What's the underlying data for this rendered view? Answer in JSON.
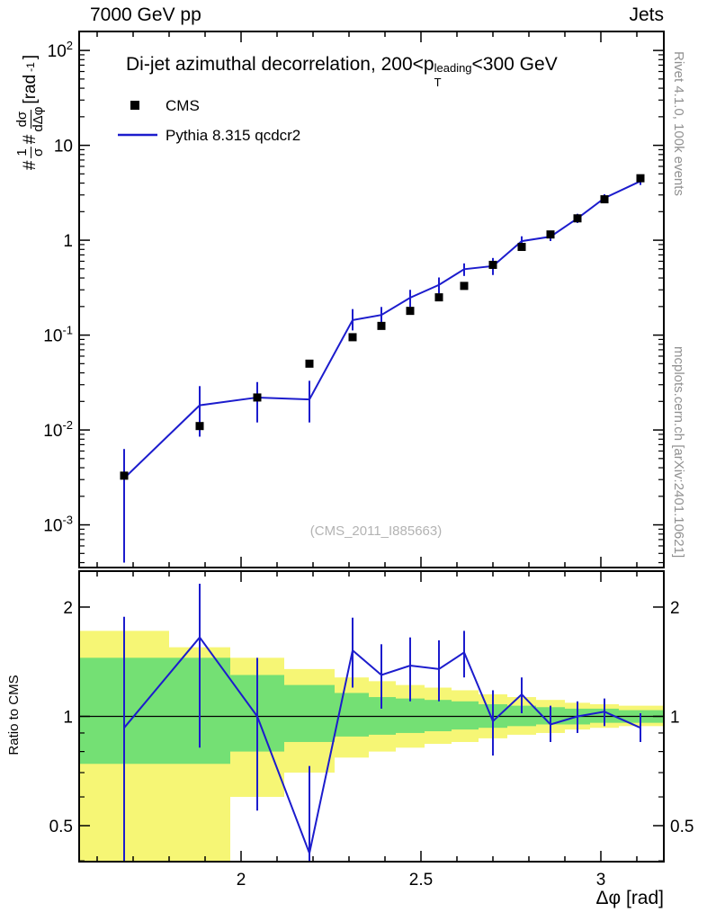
{
  "header": {
    "left": "7000 GeV pp",
    "right": "Jets"
  },
  "title": {
    "pre": "Di-jet azimuthal decorrelation, 200<p",
    "sup": "leading",
    "sub": "T",
    "post": "<300 GeV"
  },
  "legend": [
    {
      "label": "CMS",
      "style": "marker"
    },
    {
      "label": "Pythia 8.315 qcdcr2",
      "style": "line"
    }
  ],
  "ylabel_main": {
    "h1": "#",
    "f1n": "1",
    "f1d": "σ",
    "h2": "#",
    "f2n": "dσ",
    "f2d": "dΔφ",
    "u1": "[rad",
    "usup": "-1",
    "u2": "]"
  },
  "ylabel_ratio": "Ratio to CMS",
  "xlabel": "Δφ [rad]",
  "side": {
    "right_top": "Rivet 4.1.0,  100k events",
    "right_bottom": "mcplots.cern.ch [arXiv:2401.10621]"
  },
  "watermark": "(CMS_2011_I885663)",
  "colors": {
    "line": "#1c1ccd",
    "marker": "#000000",
    "band_outer": "#f6f675",
    "band_inner": "#74e074",
    "side_text": "#919191",
    "watermark": "#b3b3b3"
  },
  "chart_data": [
    {
      "type": "line",
      "title": "Di-jet azimuthal decorrelation, 200<pT^leading<300 GeV",
      "xlabel": "Δφ [rad]",
      "ylabel": "1/σ dσ/dΔφ [rad^-1]",
      "xscale": "linear",
      "yscale": "log",
      "xlim": [
        1.55,
        3.175
      ],
      "ylim": [
        0.000355,
        158.5
      ],
      "xticks": [
        2,
        2.5,
        3
      ],
      "xtick_labels": [
        "2",
        "2.5",
        "3"
      ],
      "ytick_exponents": [
        -3,
        -2,
        -1,
        0,
        1,
        2
      ],
      "x": [
        1.675,
        1.885,
        2.045,
        2.19,
        2.31,
        2.39,
        2.47,
        2.55,
        2.62,
        2.7,
        2.78,
        2.86,
        2.935,
        3.01,
        3.11
      ],
      "series": [
        {
          "name": "CMS",
          "style": "squares",
          "values": [
            0.0033,
            0.011,
            0.022,
            0.05,
            0.095,
            0.125,
            0.18,
            0.25,
            0.33,
            0.55,
            0.85,
            1.15,
            1.7,
            2.7,
            4.5
          ]
        },
        {
          "name": "Pythia 8.315 qcdcr2",
          "style": "line+errorbars",
          "values": [
            0.0031,
            0.0182,
            0.022,
            0.021,
            0.144,
            0.163,
            0.248,
            0.338,
            0.495,
            0.534,
            0.978,
            1.09,
            1.7,
            2.78,
            4.19
          ],
          "err_lo": [
            0.0004,
            0.0085,
            0.012,
            0.012,
            0.112,
            0.131,
            0.198,
            0.275,
            0.42,
            0.43,
            0.85,
            0.98,
            1.52,
            2.53,
            3.82
          ],
          "err_hi": [
            0.0063,
            0.029,
            0.032,
            0.033,
            0.188,
            0.198,
            0.3,
            0.405,
            0.57,
            0.65,
            1.1,
            1.22,
            1.9,
            3.05,
            4.58
          ]
        }
      ]
    },
    {
      "type": "line",
      "title": "Ratio to CMS",
      "series_name": "Pythia 8.315 qcdcr2 / CMS",
      "xscale": "linear",
      "yscale": "log",
      "xlim": [
        1.55,
        3.175
      ],
      "ylim": [
        0.398,
        2.512
      ],
      "xticks": [
        2,
        2.5,
        3
      ],
      "xtick_labels": [
        "2",
        "2.5",
        "3"
      ],
      "yticks": [
        0.5,
        1,
        2
      ],
      "ytick_labels": [
        "0.5",
        "1",
        "2"
      ],
      "yticks_minor": [
        0.4,
        0.6,
        0.7,
        0.8,
        0.9
      ],
      "refline": 1,
      "x": [
        1.675,
        1.885,
        2.045,
        2.19,
        2.31,
        2.39,
        2.47,
        2.55,
        2.62,
        2.7,
        2.78,
        2.86,
        2.935,
        3.01,
        3.11
      ],
      "ratio": [
        0.93,
        1.65,
        1.0,
        0.42,
        1.52,
        1.3,
        1.38,
        1.35,
        1.5,
        0.97,
        1.15,
        0.95,
        1.0,
        1.03,
        0.93
      ],
      "err_lo": [
        0.3,
        0.82,
        0.55,
        0.1,
        1.2,
        1.05,
        1.1,
        1.1,
        1.28,
        0.78,
        1.02,
        0.85,
        0.9,
        0.94,
        0.85
      ],
      "err_hi": [
        1.88,
        2.32,
        1.45,
        0.73,
        1.87,
        1.58,
        1.65,
        1.62,
        1.72,
        1.18,
        1.28,
        1.07,
        1.1,
        1.12,
        1.02
      ],
      "bands": [
        {
          "x0": 1.55,
          "x1": 1.8,
          "outer": [
            0.33,
            1.72
          ],
          "inner": [
            0.74,
            1.45
          ]
        },
        {
          "x0": 1.8,
          "x1": 1.97,
          "outer": [
            0.33,
            1.55
          ],
          "inner": [
            0.74,
            1.45
          ]
        },
        {
          "x0": 1.97,
          "x1": 2.12,
          "outer": [
            0.6,
            1.45
          ],
          "inner": [
            0.8,
            1.3
          ]
        },
        {
          "x0": 2.12,
          "x1": 2.26,
          "outer": [
            0.7,
            1.35
          ],
          "inner": [
            0.85,
            1.22
          ]
        },
        {
          "x0": 2.26,
          "x1": 2.355,
          "outer": [
            0.77,
            1.28
          ],
          "inner": [
            0.88,
            1.16
          ]
        },
        {
          "x0": 2.355,
          "x1": 2.43,
          "outer": [
            0.8,
            1.25
          ],
          "inner": [
            0.89,
            1.13
          ]
        },
        {
          "x0": 2.43,
          "x1": 2.51,
          "outer": [
            0.82,
            1.22
          ],
          "inner": [
            0.9,
            1.12
          ]
        },
        {
          "x0": 2.51,
          "x1": 2.585,
          "outer": [
            0.84,
            1.2
          ],
          "inner": [
            0.91,
            1.11
          ]
        },
        {
          "x0": 2.585,
          "x1": 2.66,
          "outer": [
            0.85,
            1.18
          ],
          "inner": [
            0.92,
            1.1
          ]
        },
        {
          "x0": 2.66,
          "x1": 2.74,
          "outer": [
            0.87,
            1.15
          ],
          "inner": [
            0.93,
            1.08
          ]
        },
        {
          "x0": 2.74,
          "x1": 2.82,
          "outer": [
            0.89,
            1.13
          ],
          "inner": [
            0.94,
            1.07
          ]
        },
        {
          "x0": 2.82,
          "x1": 2.9,
          "outer": [
            0.9,
            1.11
          ],
          "inner": [
            0.95,
            1.06
          ]
        },
        {
          "x0": 2.9,
          "x1": 2.97,
          "outer": [
            0.92,
            1.09
          ],
          "inner": [
            0.95,
            1.05
          ]
        },
        {
          "x0": 2.97,
          "x1": 3.05,
          "outer": [
            0.93,
            1.08
          ],
          "inner": [
            0.96,
            1.05
          ]
        },
        {
          "x0": 3.05,
          "x1": 3.175,
          "outer": [
            0.94,
            1.07
          ],
          "inner": [
            0.96,
            1.04
          ]
        }
      ]
    }
  ]
}
